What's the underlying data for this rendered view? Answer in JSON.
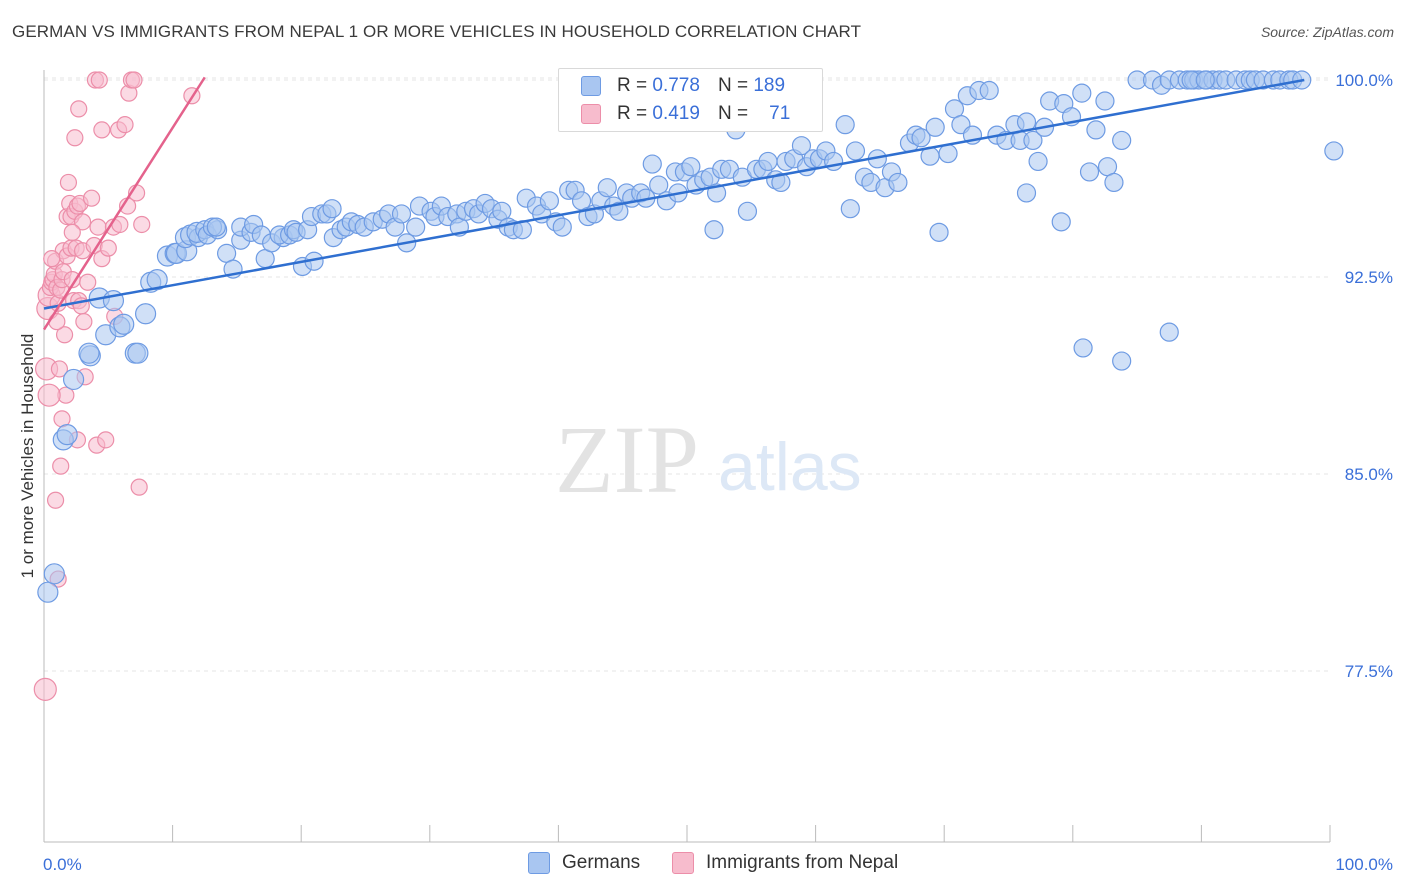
{
  "header": {
    "title": "GERMAN VS IMMIGRANTS FROM NEPAL 1 OR MORE VEHICLES IN HOUSEHOLD CORRELATION CHART",
    "source": "Source: ZipAtlas.com"
  },
  "watermark": {
    "zip": "ZIP",
    "atlas": "atlas"
  },
  "legend": {
    "rows": [
      {
        "r_label": "R =",
        "r_value": "0.778",
        "n_label": "N =",
        "n_value": "189"
      },
      {
        "r_label": "R =",
        "r_value": "0.419",
        "n_label": "N =",
        "n_value": "71"
      }
    ]
  },
  "bottom_legend": [
    "Germans",
    "Immigrants from Nepal"
  ],
  "colors": {
    "blue_fill": "#a9c6f1",
    "blue_stroke": "#6e9be3",
    "blue_line": "#2f6fd0",
    "pink_fill": "#f7bccd",
    "pink_stroke": "#ec8ea9",
    "pink_line": "#e4628c",
    "tick_label": "#3a6fd8",
    "grid": "#e4e4e4"
  },
  "chart_data": {
    "type": "scatter",
    "title": "GERMAN VS IMMIGRANTS FROM NEPAL 1 OR MORE VEHICLES IN HOUSEHOLD CORRELATION CHART",
    "xlabel": "",
    "ylabel": "1 or more Vehicles in Household",
    "xlim": [
      0,
      100
    ],
    "ylim": [
      70,
      100.8
    ],
    "x_tick_labels": [
      "0.0%",
      "100.0%"
    ],
    "y_ticks": [
      77.5,
      85.0,
      92.5,
      100.0
    ],
    "y_tick_labels": [
      "77.5%",
      "85.0%",
      "92.5%",
      "100.0%"
    ],
    "grid": "horizontal dashed",
    "legend_position": "top-center",
    "series": [
      {
        "name": "Germans",
        "R": 0.778,
        "N": 189,
        "trend": {
          "x": [
            0,
            98
          ],
          "y": [
            91.3,
            100.0
          ]
        },
        "points": [
          [
            0.3,
            80.5
          ],
          [
            0.8,
            81.2
          ],
          [
            1.5,
            86.3
          ],
          [
            1.8,
            86.5
          ],
          [
            2.3,
            88.6
          ],
          [
            3.6,
            89.5
          ],
          [
            3.5,
            89.6
          ],
          [
            4.8,
            90.3
          ],
          [
            5.9,
            90.6
          ],
          [
            6.2,
            90.7
          ],
          [
            7.1,
            89.6
          ],
          [
            7.3,
            89.6
          ],
          [
            7.9,
            91.1
          ],
          [
            4.3,
            91.7
          ],
          [
            5.4,
            91.6
          ],
          [
            8.3,
            92.3
          ],
          [
            8.8,
            92.4
          ],
          [
            9.6,
            93.3
          ],
          [
            10.2,
            93.4
          ],
          [
            10.3,
            93.4
          ],
          [
            11.1,
            93.5
          ],
          [
            11.0,
            94.0
          ],
          [
            11.4,
            94.1
          ],
          [
            12.0,
            94.0
          ],
          [
            11.9,
            94.2
          ],
          [
            12.5,
            94.3
          ],
          [
            12.7,
            94.1
          ],
          [
            13.5,
            94.3
          ],
          [
            13.1,
            94.4
          ],
          [
            13.4,
            94.4
          ],
          [
            14.2,
            93.4
          ],
          [
            14.7,
            92.8
          ],
          [
            15.3,
            93.9
          ],
          [
            15.3,
            94.4
          ],
          [
            16.1,
            94.2
          ],
          [
            16.3,
            94.5
          ],
          [
            16.9,
            94.1
          ],
          [
            17.2,
            93.2
          ],
          [
            17.7,
            93.8
          ],
          [
            18.6,
            94.0
          ],
          [
            18.3,
            94.1
          ],
          [
            19.1,
            94.1
          ],
          [
            19.4,
            94.3
          ],
          [
            19.6,
            94.2
          ],
          [
            20.1,
            92.9
          ],
          [
            20.5,
            94.3
          ],
          [
            21.0,
            93.1
          ],
          [
            20.8,
            94.8
          ],
          [
            21.6,
            94.9
          ],
          [
            22.0,
            94.9
          ],
          [
            22.4,
            95.1
          ],
          [
            22.5,
            94.0
          ],
          [
            23.1,
            94.3
          ],
          [
            23.5,
            94.4
          ],
          [
            23.9,
            94.6
          ],
          [
            24.4,
            94.5
          ],
          [
            24.9,
            94.4
          ],
          [
            25.6,
            94.6
          ],
          [
            26.3,
            94.7
          ],
          [
            26.8,
            94.9
          ],
          [
            27.3,
            94.4
          ],
          [
            27.8,
            94.9
          ],
          [
            28.2,
            93.8
          ],
          [
            28.9,
            94.4
          ],
          [
            29.2,
            95.2
          ],
          [
            30.1,
            95.0
          ],
          [
            30.4,
            94.8
          ],
          [
            30.9,
            95.2
          ],
          [
            31.4,
            94.8
          ],
          [
            32.1,
            94.9
          ],
          [
            32.3,
            94.4
          ],
          [
            32.8,
            95.0
          ],
          [
            33.4,
            95.1
          ],
          [
            33.8,
            94.9
          ],
          [
            34.3,
            95.3
          ],
          [
            34.8,
            95.1
          ],
          [
            35.3,
            94.7
          ],
          [
            35.6,
            95.0
          ],
          [
            36.1,
            94.4
          ],
          [
            36.5,
            94.3
          ],
          [
            37.2,
            94.3
          ],
          [
            37.5,
            95.5
          ],
          [
            38.3,
            95.2
          ],
          [
            38.7,
            94.9
          ],
          [
            39.3,
            95.4
          ],
          [
            39.8,
            94.6
          ],
          [
            40.3,
            94.4
          ],
          [
            40.8,
            95.8
          ],
          [
            41.3,
            95.8
          ],
          [
            41.8,
            95.4
          ],
          [
            42.3,
            94.8
          ],
          [
            42.8,
            94.9
          ],
          [
            43.3,
            95.4
          ],
          [
            43.8,
            95.9
          ],
          [
            44.3,
            95.2
          ],
          [
            44.7,
            95.0
          ],
          [
            45.3,
            95.7
          ],
          [
            45.7,
            95.5
          ],
          [
            46.4,
            95.7
          ],
          [
            46.8,
            95.5
          ],
          [
            47.3,
            96.8
          ],
          [
            47.8,
            96.0
          ],
          [
            48.4,
            95.4
          ],
          [
            49.1,
            96.5
          ],
          [
            49.3,
            95.7
          ],
          [
            49.8,
            96.5
          ],
          [
            50.3,
            96.7
          ],
          [
            50.7,
            96.0
          ],
          [
            51.3,
            96.2
          ],
          [
            51.8,
            96.3
          ],
          [
            52.1,
            94.3
          ],
          [
            52.3,
            95.7
          ],
          [
            52.7,
            96.6
          ],
          [
            53.3,
            96.6
          ],
          [
            53.8,
            98.1
          ],
          [
            54.3,
            96.3
          ],
          [
            54.7,
            95.0
          ],
          [
            55.4,
            96.6
          ],
          [
            55.9,
            96.6
          ],
          [
            56.3,
            96.9
          ],
          [
            56.9,
            96.2
          ],
          [
            57.3,
            96.1
          ],
          [
            57.7,
            96.9
          ],
          [
            58.3,
            97.0
          ],
          [
            58.9,
            97.5
          ],
          [
            59.3,
            96.7
          ],
          [
            59.8,
            97.0
          ],
          [
            60.3,
            97.0
          ],
          [
            60.8,
            97.3
          ],
          [
            61.4,
            96.9
          ],
          [
            62.3,
            98.3
          ],
          [
            62.7,
            95.1
          ],
          [
            63.1,
            97.3
          ],
          [
            63.8,
            96.3
          ],
          [
            64.3,
            96.1
          ],
          [
            64.8,
            97.0
          ],
          [
            65.4,
            95.9
          ],
          [
            65.9,
            96.5
          ],
          [
            66.4,
            96.1
          ],
          [
            67.3,
            97.6
          ],
          [
            67.8,
            97.9
          ],
          [
            68.2,
            97.8
          ],
          [
            68.9,
            97.1
          ],
          [
            69.3,
            98.2
          ],
          [
            69.6,
            94.2
          ],
          [
            70.3,
            97.2
          ],
          [
            70.8,
            98.9
          ],
          [
            71.3,
            98.3
          ],
          [
            71.8,
            99.4
          ],
          [
            72.2,
            97.9
          ],
          [
            72.7,
            99.6
          ],
          [
            73.5,
            99.6
          ],
          [
            74.1,
            97.9
          ],
          [
            74.8,
            97.7
          ],
          [
            75.5,
            98.3
          ],
          [
            75.9,
            97.7
          ],
          [
            76.4,
            98.4
          ],
          [
            76.9,
            97.7
          ],
          [
            76.4,
            95.7
          ],
          [
            77.3,
            96.9
          ],
          [
            77.8,
            98.2
          ],
          [
            78.2,
            99.2
          ],
          [
            79.3,
            99.1
          ],
          [
            79.1,
            94.6
          ],
          [
            79.9,
            98.6
          ],
          [
            80.7,
            99.5
          ],
          [
            80.8,
            89.8
          ],
          [
            81.3,
            96.5
          ],
          [
            81.8,
            98.1
          ],
          [
            82.5,
            99.2
          ],
          [
            82.7,
            96.7
          ],
          [
            83.2,
            96.1
          ],
          [
            83.8,
            97.7
          ],
          [
            83.8,
            89.3
          ],
          [
            85.0,
            100.0
          ],
          [
            86.2,
            100.0
          ],
          [
            86.9,
            99.8
          ],
          [
            87.5,
            100.0
          ],
          [
            87.5,
            90.4
          ],
          [
            88.3,
            100.0
          ],
          [
            88.9,
            100.0
          ],
          [
            89.4,
            100.0
          ],
          [
            89.8,
            100.0
          ],
          [
            90.4,
            100.0
          ],
          [
            90.9,
            100.0
          ],
          [
            91.4,
            100.0
          ],
          [
            91.9,
            100.0
          ],
          [
            92.7,
            100.0
          ],
          [
            93.4,
            100.0
          ],
          [
            93.8,
            100.0
          ],
          [
            94.2,
            100.0
          ],
          [
            94.8,
            100.0
          ],
          [
            95.6,
            100.0
          ],
          [
            96.1,
            100.0
          ],
          [
            96.8,
            100.0
          ],
          [
            97.1,
            100.0
          ],
          [
            97.8,
            100.0
          ],
          [
            100.3,
            97.3
          ],
          [
            89.2,
            100.0
          ],
          [
            90.3,
            100.0
          ]
        ]
      },
      {
        "name": "Immigrants from Nepal",
        "R": 0.419,
        "N": 71,
        "trend": {
          "x": [
            0,
            12.5
          ],
          "y": [
            90.5,
            100.1
          ]
        },
        "points": [
          [
            0.1,
            76.8
          ],
          [
            0.2,
            89.0
          ],
          [
            0.3,
            91.3
          ],
          [
            0.4,
            91.8
          ],
          [
            0.5,
            92.1
          ],
          [
            0.6,
            92.3
          ],
          [
            0.7,
            92.4
          ],
          [
            0.8,
            92.6
          ],
          [
            0.9,
            93.1
          ],
          [
            0.9,
            84.0
          ],
          [
            1.0,
            92.1
          ],
          [
            1.1,
            91.5
          ],
          [
            1.1,
            81.0
          ],
          [
            1.2,
            89.0
          ],
          [
            1.3,
            85.3
          ],
          [
            1.3,
            92.0
          ],
          [
            1.4,
            92.4
          ],
          [
            1.5,
            92.7
          ],
          [
            1.5,
            93.5
          ],
          [
            1.6,
            90.3
          ],
          [
            1.7,
            88.0
          ],
          [
            1.8,
            93.3
          ],
          [
            1.8,
            94.8
          ],
          [
            1.9,
            96.1
          ],
          [
            2.0,
            95.3
          ],
          [
            2.1,
            94.8
          ],
          [
            2.1,
            93.6
          ],
          [
            2.2,
            92.4
          ],
          [
            2.3,
            91.6
          ],
          [
            2.4,
            95.0
          ],
          [
            2.4,
            97.8
          ],
          [
            2.5,
            93.6
          ],
          [
            2.6,
            95.2
          ],
          [
            2.7,
            91.6
          ],
          [
            2.7,
            98.9
          ],
          [
            2.8,
            95.3
          ],
          [
            2.9,
            91.4
          ],
          [
            3.0,
            94.6
          ],
          [
            3.0,
            93.5
          ],
          [
            3.1,
            90.8
          ],
          [
            3.2,
            88.7
          ],
          [
            3.7,
            95.5
          ],
          [
            3.9,
            93.7
          ],
          [
            4.1,
            86.1
          ],
          [
            4.2,
            94.4
          ],
          [
            4.5,
            93.2
          ],
          [
            4.5,
            98.1
          ],
          [
            4.8,
            86.3
          ],
          [
            5.0,
            93.6
          ],
          [
            5.4,
            94.4
          ],
          [
            5.8,
            98.1
          ],
          [
            5.9,
            94.5
          ],
          [
            4.0,
            100.0
          ],
          [
            4.3,
            100.0
          ],
          [
            6.3,
            98.3
          ],
          [
            6.6,
            99.5
          ],
          [
            6.8,
            100.0
          ],
          [
            7.0,
            100.0
          ],
          [
            7.2,
            95.7
          ],
          [
            7.6,
            94.5
          ],
          [
            5.5,
            91.0
          ],
          [
            6.5,
            95.2
          ],
          [
            7.4,
            84.5
          ],
          [
            11.5,
            99.4
          ],
          [
            0.4,
            88.0
          ],
          [
            1.4,
            87.1
          ],
          [
            2.6,
            86.3
          ],
          [
            3.4,
            92.3
          ],
          [
            1.0,
            90.8
          ],
          [
            0.6,
            93.2
          ],
          [
            2.2,
            94.2
          ]
        ]
      }
    ]
  }
}
